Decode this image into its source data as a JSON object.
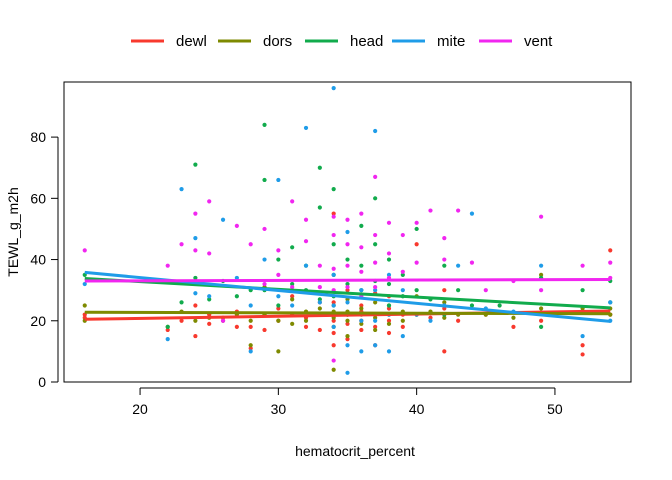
{
  "chart_data": {
    "type": "scatter",
    "xlabel": "hematocrit_percent",
    "ylabel": "TEWL_g_m2h",
    "xlim": [
      14.5,
      55.5
    ],
    "ylim": [
      0,
      98
    ],
    "xticks": [
      20,
      30,
      40,
      50
    ],
    "yticks": [
      0,
      20,
      40,
      60,
      80
    ],
    "grid": false,
    "legend_position": "top",
    "series": [
      {
        "name": "dewl",
        "color": "#F8392E",
        "fit": [
          [
            16,
            20.5
          ],
          [
            54,
            23.2
          ]
        ],
        "points": [
          [
            16,
            21
          ],
          [
            16,
            22
          ],
          [
            22,
            17
          ],
          [
            23,
            20
          ],
          [
            24,
            25
          ],
          [
            24,
            15
          ],
          [
            25,
            19
          ],
          [
            25,
            22
          ],
          [
            26,
            21
          ],
          [
            27,
            18
          ],
          [
            27,
            23
          ],
          [
            28,
            11
          ],
          [
            28,
            18
          ],
          [
            29,
            22
          ],
          [
            29,
            17
          ],
          [
            30,
            24
          ],
          [
            30,
            20
          ],
          [
            31,
            22
          ],
          [
            31,
            28
          ],
          [
            32,
            21
          ],
          [
            32,
            18
          ],
          [
            33,
            22
          ],
          [
            33,
            26
          ],
          [
            33,
            17
          ],
          [
            34,
            55
          ],
          [
            34,
            26
          ],
          [
            34,
            22
          ],
          [
            34,
            20
          ],
          [
            34,
            16
          ],
          [
            34,
            12
          ],
          [
            35,
            30
          ],
          [
            35,
            22
          ],
          [
            35,
            19
          ],
          [
            35,
            14
          ],
          [
            36,
            25
          ],
          [
            36,
            23
          ],
          [
            36,
            20
          ],
          [
            36,
            17
          ],
          [
            37,
            29
          ],
          [
            37,
            22
          ],
          [
            37,
            18
          ],
          [
            37,
            12
          ],
          [
            38,
            28
          ],
          [
            38,
            24
          ],
          [
            38,
            20
          ],
          [
            38,
            16
          ],
          [
            39,
            22
          ],
          [
            39,
            18
          ],
          [
            40,
            45
          ],
          [
            40,
            22
          ],
          [
            41,
            21
          ],
          [
            42,
            30
          ],
          [
            42,
            24
          ],
          [
            42,
            10
          ],
          [
            43,
            20
          ],
          [
            45,
            22
          ],
          [
            47,
            18
          ],
          [
            49,
            20
          ],
          [
            52,
            12
          ],
          [
            52,
            9
          ],
          [
            54,
            43
          ],
          [
            54,
            22
          ]
        ]
      },
      {
        "name": "dors",
        "color": "#7E8A00",
        "fit": [
          [
            16,
            22.8
          ],
          [
            54,
            22.3
          ]
        ],
        "points": [
          [
            16,
            25
          ],
          [
            16,
            20
          ],
          [
            22,
            18
          ],
          [
            23,
            23
          ],
          [
            24,
            20
          ],
          [
            25,
            21
          ],
          [
            26,
            20
          ],
          [
            27,
            22
          ],
          [
            28,
            12
          ],
          [
            28,
            20
          ],
          [
            29,
            31
          ],
          [
            29,
            22
          ],
          [
            30,
            10
          ],
          [
            30,
            20
          ],
          [
            31,
            19
          ],
          [
            31,
            27
          ],
          [
            32,
            23
          ],
          [
            32,
            20
          ],
          [
            33,
            24
          ],
          [
            33,
            22
          ],
          [
            34,
            4
          ],
          [
            34,
            25
          ],
          [
            34,
            23
          ],
          [
            34,
            21
          ],
          [
            34,
            18
          ],
          [
            35,
            27
          ],
          [
            35,
            23
          ],
          [
            35,
            20
          ],
          [
            35,
            15
          ],
          [
            36,
            24
          ],
          [
            36,
            22
          ],
          [
            36,
            19
          ],
          [
            37,
            26
          ],
          [
            37,
            21
          ],
          [
            37,
            17
          ],
          [
            38,
            25
          ],
          [
            38,
            22
          ],
          [
            38,
            19
          ],
          [
            39,
            23
          ],
          [
            39,
            20
          ],
          [
            40,
            28
          ],
          [
            40,
            22
          ],
          [
            41,
            23
          ],
          [
            42,
            26
          ],
          [
            42,
            21
          ],
          [
            43,
            22
          ],
          [
            45,
            22
          ],
          [
            47,
            21
          ],
          [
            49,
            35
          ],
          [
            49,
            24
          ],
          [
            52,
            24
          ],
          [
            54,
            24
          ],
          [
            54,
            22
          ]
        ]
      },
      {
        "name": "head",
        "color": "#11AB4C",
        "fit": [
          [
            16,
            33.8
          ],
          [
            54,
            24.2
          ]
        ],
        "points": [
          [
            16,
            35
          ],
          [
            22,
            18
          ],
          [
            23,
            26
          ],
          [
            24,
            71
          ],
          [
            24,
            34
          ],
          [
            25,
            27
          ],
          [
            26,
            33
          ],
          [
            27,
            28
          ],
          [
            28,
            30
          ],
          [
            29,
            84
          ],
          [
            29,
            66
          ],
          [
            29,
            30
          ],
          [
            30,
            25
          ],
          [
            30,
            40
          ],
          [
            31,
            32
          ],
          [
            31,
            44
          ],
          [
            32,
            38
          ],
          [
            32,
            30
          ],
          [
            33,
            70
          ],
          [
            33,
            57
          ],
          [
            33,
            27
          ],
          [
            34,
            63
          ],
          [
            34,
            45
          ],
          [
            34,
            35
          ],
          [
            34,
            28
          ],
          [
            35,
            40
          ],
          [
            35,
            32
          ],
          [
            35,
            22
          ],
          [
            36,
            51
          ],
          [
            36,
            38
          ],
          [
            36,
            30
          ],
          [
            37,
            60
          ],
          [
            37,
            45
          ],
          [
            37,
            33
          ],
          [
            38,
            40
          ],
          [
            38,
            32
          ],
          [
            38,
            25
          ],
          [
            39,
            35
          ],
          [
            39,
            28
          ],
          [
            40,
            50
          ],
          [
            40,
            30
          ],
          [
            41,
            27
          ],
          [
            42,
            38
          ],
          [
            42,
            22
          ],
          [
            43,
            30
          ],
          [
            44,
            25
          ],
          [
            46,
            25
          ],
          [
            49,
            18
          ],
          [
            49,
            34
          ],
          [
            52,
            30
          ],
          [
            54,
            33
          ],
          [
            54,
            26
          ]
        ]
      },
      {
        "name": "mite",
        "color": "#1F9CE8",
        "fit": [
          [
            16,
            35.8
          ],
          [
            54,
            19.8
          ]
        ],
        "points": [
          [
            16,
            32
          ],
          [
            22,
            14
          ],
          [
            23,
            63
          ],
          [
            24,
            47
          ],
          [
            24,
            29
          ],
          [
            25,
            28
          ],
          [
            26,
            53
          ],
          [
            27,
            34
          ],
          [
            28,
            25
          ],
          [
            28,
            10
          ],
          [
            29,
            40
          ],
          [
            30,
            66
          ],
          [
            30,
            28
          ],
          [
            31,
            25
          ],
          [
            32,
            83
          ],
          [
            32,
            38
          ],
          [
            33,
            26
          ],
          [
            34,
            96
          ],
          [
            34,
            35
          ],
          [
            34,
            25
          ],
          [
            34,
            18
          ],
          [
            35,
            49
          ],
          [
            35,
            26
          ],
          [
            35,
            12
          ],
          [
            35,
            3
          ],
          [
            36,
            30
          ],
          [
            36,
            20
          ],
          [
            36,
            10
          ],
          [
            37,
            82
          ],
          [
            37,
            30
          ],
          [
            37,
            20
          ],
          [
            37,
            12
          ],
          [
            38,
            35
          ],
          [
            38,
            22
          ],
          [
            38,
            10
          ],
          [
            39,
            30
          ],
          [
            39,
            15
          ],
          [
            40,
            22
          ],
          [
            41,
            20
          ],
          [
            42,
            25
          ],
          [
            43,
            38
          ],
          [
            44,
            55
          ],
          [
            45,
            24
          ],
          [
            47,
            23
          ],
          [
            49,
            38
          ],
          [
            52,
            15
          ],
          [
            54,
            26
          ],
          [
            54,
            20
          ]
        ]
      },
      {
        "name": "vent",
        "color": "#F126F0",
        "fit": [
          [
            16,
            33.0
          ],
          [
            54,
            33.5
          ]
        ],
        "points": [
          [
            16,
            43
          ],
          [
            22,
            38
          ],
          [
            23,
            45
          ],
          [
            24,
            43
          ],
          [
            24,
            55
          ],
          [
            25,
            59
          ],
          [
            25,
            42
          ],
          [
            26,
            20
          ],
          [
            27,
            51
          ],
          [
            28,
            45
          ],
          [
            29,
            50
          ],
          [
            29,
            32
          ],
          [
            30,
            43
          ],
          [
            30,
            35
          ],
          [
            31,
            31
          ],
          [
            31,
            59
          ],
          [
            32,
            53
          ],
          [
            32,
            46
          ],
          [
            33,
            38
          ],
          [
            33,
            31
          ],
          [
            34,
            54
          ],
          [
            34,
            48
          ],
          [
            34,
            37
          ],
          [
            34,
            30
          ],
          [
            34,
            22
          ],
          [
            34,
            7
          ],
          [
            35,
            53
          ],
          [
            35,
            45
          ],
          [
            35,
            38
          ],
          [
            35,
            31
          ],
          [
            36,
            55
          ],
          [
            36,
            44
          ],
          [
            36,
            36
          ],
          [
            36,
            28
          ],
          [
            37,
            67
          ],
          [
            37,
            48
          ],
          [
            37,
            39
          ],
          [
            37,
            31
          ],
          [
            38,
            52
          ],
          [
            38,
            42
          ],
          [
            38,
            34
          ],
          [
            39,
            48
          ],
          [
            39,
            36
          ],
          [
            40,
            52
          ],
          [
            40,
            39
          ],
          [
            41,
            56
          ],
          [
            42,
            40
          ],
          [
            42,
            47
          ],
          [
            43,
            56
          ],
          [
            44,
            39
          ],
          [
            45,
            30
          ],
          [
            47,
            33
          ],
          [
            49,
            54
          ],
          [
            49,
            30
          ],
          [
            52,
            38
          ],
          [
            54,
            39
          ],
          [
            54,
            34
          ]
        ]
      }
    ]
  }
}
